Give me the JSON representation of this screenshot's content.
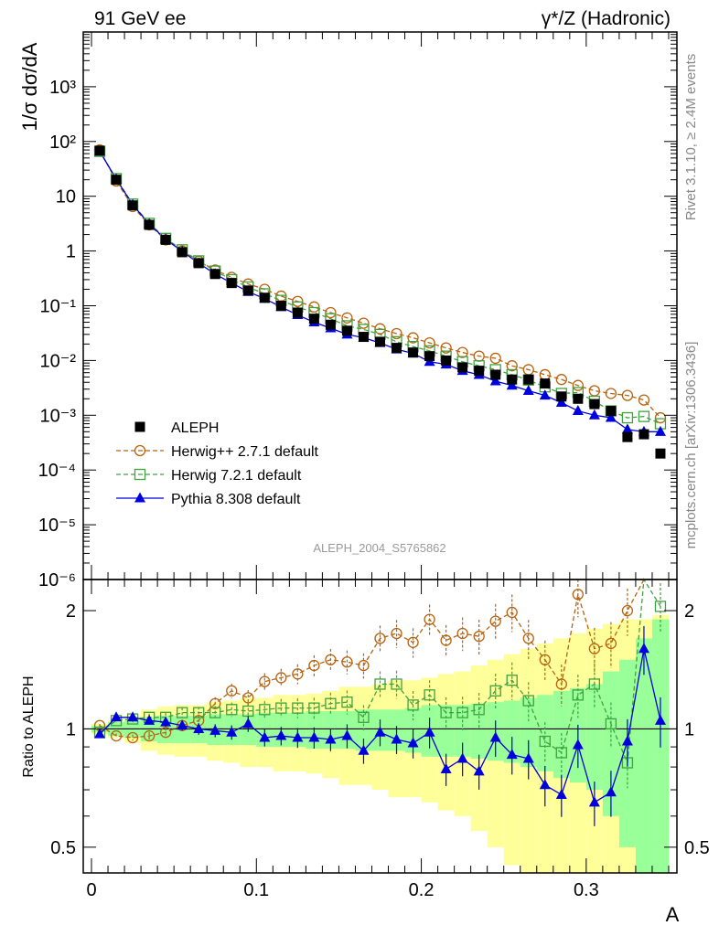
{
  "header": {
    "left_title": "91 GeV ee",
    "right_title": "γ*/Z (Hadronic)"
  },
  "side_labels": {
    "rivet": "Rivet 3.1.10, ≥ 2.4M events",
    "mcplots": "mcplots.cern.ch [arXiv:1306.3436]"
  },
  "watermark": "ALEPH_2004_S5765862",
  "colors": {
    "aleph": "#000000",
    "herwigpp": "#b8620f",
    "herwig7": "#3fa23f",
    "pythia": "#0000dd",
    "band_yellow": "#ffff99",
    "band_green": "#99ff99"
  },
  "chart_data": [
    {
      "type": "scatter",
      "panel": "main",
      "ylabel": "1/σ dσ/dA",
      "yscale": "log",
      "ylim": [
        1e-06,
        10000
      ],
      "xlim": [
        -0.005,
        0.355
      ],
      "y_ticks": [
        "10^-6",
        "10^-5",
        "10^-4",
        "10^-3",
        "10^-2",
        "10^-1",
        "1",
        "10",
        "10^2",
        "10^3"
      ],
      "legend": {
        "placement": "lower-left",
        "entries": [
          "ALEPH",
          "Herwig++ 2.7.1 default",
          "Herwig 7.2.1 default",
          "Pythia 8.308 default"
        ]
      },
      "x": [
        0.005,
        0.015,
        0.025,
        0.035,
        0.045,
        0.055,
        0.065,
        0.075,
        0.085,
        0.095,
        0.105,
        0.115,
        0.125,
        0.135,
        0.145,
        0.155,
        0.165,
        0.175,
        0.185,
        0.195,
        0.205,
        0.215,
        0.225,
        0.235,
        0.245,
        0.255,
        0.265,
        0.275,
        0.285,
        0.295,
        0.305,
        0.315,
        0.325,
        0.335,
        0.345
      ],
      "series": [
        {
          "name": "ALEPH",
          "marker": "square",
          "values": [
            68,
            20,
            6.8,
            3.0,
            1.6,
            0.95,
            0.6,
            0.38,
            0.26,
            0.19,
            0.14,
            0.1,
            0.075,
            0.058,
            0.045,
            0.035,
            0.027,
            0.022,
            0.017,
            0.014,
            0.012,
            0.01,
            0.0075,
            0.0065,
            0.0055,
            0.0045,
            0.0045,
            0.0038,
            0.0022,
            0.002,
            0.0016,
            0.0012,
            0.0004,
            0.00045,
            0.0002
          ]
        },
        {
          "name": "Herwig++ 2.7.1 default",
          "marker": "open-circle",
          "values": [
            70,
            19,
            6.5,
            3.0,
            1.6,
            1.0,
            0.65,
            0.45,
            0.33,
            0.25,
            0.2,
            0.15,
            0.12,
            0.095,
            0.075,
            0.06,
            0.048,
            0.038,
            0.031,
            0.026,
            0.021,
            0.017,
            0.014,
            0.012,
            0.011,
            0.008,
            0.0068,
            0.0055,
            0.0045,
            0.0035,
            0.0028,
            0.0025,
            0.0023,
            0.0019,
            0.0009
          ]
        },
        {
          "name": "Herwig 7.2.1 default",
          "marker": "open-square",
          "values": [
            66,
            21,
            7.2,
            3.2,
            1.7,
            1.05,
            0.66,
            0.43,
            0.3,
            0.22,
            0.165,
            0.125,
            0.095,
            0.075,
            0.058,
            0.043,
            0.037,
            0.03,
            0.022,
            0.018,
            0.015,
            0.012,
            0.0095,
            0.008,
            0.0068,
            0.0055,
            0.0044,
            0.0033,
            0.0025,
            0.0026,
            0.0018,
            0.0012,
            0.0009,
            0.00095,
            0.0007
          ]
        },
        {
          "name": "Pythia 8.308 default",
          "marker": "filled-triangle",
          "values": [
            66,
            20.5,
            7.0,
            3.1,
            1.65,
            0.98,
            0.6,
            0.38,
            0.26,
            0.18,
            0.135,
            0.095,
            0.068,
            0.05,
            0.039,
            0.03,
            0.026,
            0.021,
            0.016,
            0.0135,
            0.0095,
            0.0085,
            0.0065,
            0.0055,
            0.0042,
            0.0035,
            0.0028,
            0.0023,
            0.0017,
            0.0012,
            0.001,
            0.0009,
            0.00055,
            0.0005,
            0.0005
          ]
        }
      ]
    },
    {
      "type": "scatter",
      "panel": "ratio",
      "ylabel": "Ratio to ALEPH",
      "xlabel": "A",
      "yscale": "log",
      "ylim": [
        0.43,
        2.4
      ],
      "xlim": [
        -0.005,
        0.355
      ],
      "y_ticks": [
        0.5,
        1,
        2
      ],
      "x_ticks": [
        0,
        0.1,
        0.2,
        0.3
      ],
      "x": [
        0.005,
        0.015,
        0.025,
        0.035,
        0.045,
        0.055,
        0.065,
        0.075,
        0.085,
        0.095,
        0.105,
        0.115,
        0.125,
        0.135,
        0.145,
        0.155,
        0.165,
        0.175,
        0.185,
        0.195,
        0.205,
        0.215,
        0.225,
        0.235,
        0.245,
        0.255,
        0.265,
        0.275,
        0.285,
        0.295,
        0.305,
        0.315,
        0.325,
        0.335,
        0.345
      ],
      "series": [
        {
          "name": "Herwig++ 2.7.1 default",
          "values": [
            1.02,
            0.96,
            0.95,
            0.96,
            0.98,
            1.02,
            1.05,
            1.16,
            1.25,
            1.2,
            1.32,
            1.35,
            1.38,
            1.45,
            1.5,
            1.48,
            1.45,
            1.7,
            1.75,
            1.66,
            1.9,
            1.68,
            1.75,
            1.72,
            1.88,
            1.98,
            1.7,
            1.5,
            1.3,
            2.2,
            1.6,
            1.65,
            2.0,
            2.4,
            2.4
          ]
        },
        {
          "name": "Herwig 7.2.1 default",
          "values": [
            0.98,
            1.05,
            1.06,
            1.07,
            1.07,
            1.1,
            1.1,
            1.1,
            1.12,
            1.11,
            1.12,
            1.13,
            1.13,
            1.13,
            1.16,
            1.17,
            1.07,
            1.3,
            1.3,
            1.15,
            1.22,
            1.1,
            1.1,
            1.12,
            1.25,
            1.33,
            1.18,
            0.93,
            0.87,
            1.22,
            1.3,
            1.03,
            0.82,
            2.4,
            2.05
          ]
        },
        {
          "name": "Pythia 8.308 default",
          "values": [
            0.97,
            1.07,
            1.07,
            1.05,
            1.04,
            1.02,
            1.0,
            0.99,
            0.98,
            1.03,
            0.95,
            0.96,
            0.95,
            0.95,
            0.94,
            0.96,
            0.88,
            0.98,
            0.94,
            0.92,
            0.98,
            0.79,
            0.84,
            0.78,
            0.95,
            0.86,
            0.84,
            0.72,
            0.68,
            0.91,
            0.65,
            0.69,
            0.93,
            1.6,
            1.05
          ]
        }
      ],
      "uncertainty_band_green_halfwidth": [
        0.02,
        0.04,
        0.05,
        0.07,
        0.08,
        0.08,
        0.08,
        0.09,
        0.09,
        0.09,
        0.1,
        0.1,
        0.1,
        0.11,
        0.11,
        0.11,
        0.12,
        0.12,
        0.12,
        0.13,
        0.15,
        0.15,
        0.15,
        0.16,
        0.17,
        0.18,
        0.2,
        0.22,
        0.25,
        0.27,
        0.3,
        0.4,
        0.5,
        0.7,
        0.9
      ],
      "uncertainty_band_yellow_halfwidth": [
        0.03,
        0.05,
        0.08,
        0.12,
        0.14,
        0.15,
        0.15,
        0.17,
        0.18,
        0.2,
        0.2,
        0.22,
        0.22,
        0.23,
        0.25,
        0.28,
        0.28,
        0.3,
        0.33,
        0.33,
        0.35,
        0.38,
        0.4,
        0.45,
        0.5,
        0.55,
        0.6,
        0.65,
        0.7,
        0.75,
        0.8,
        0.85,
        0.9,
        0.9,
        0.95
      ]
    }
  ]
}
